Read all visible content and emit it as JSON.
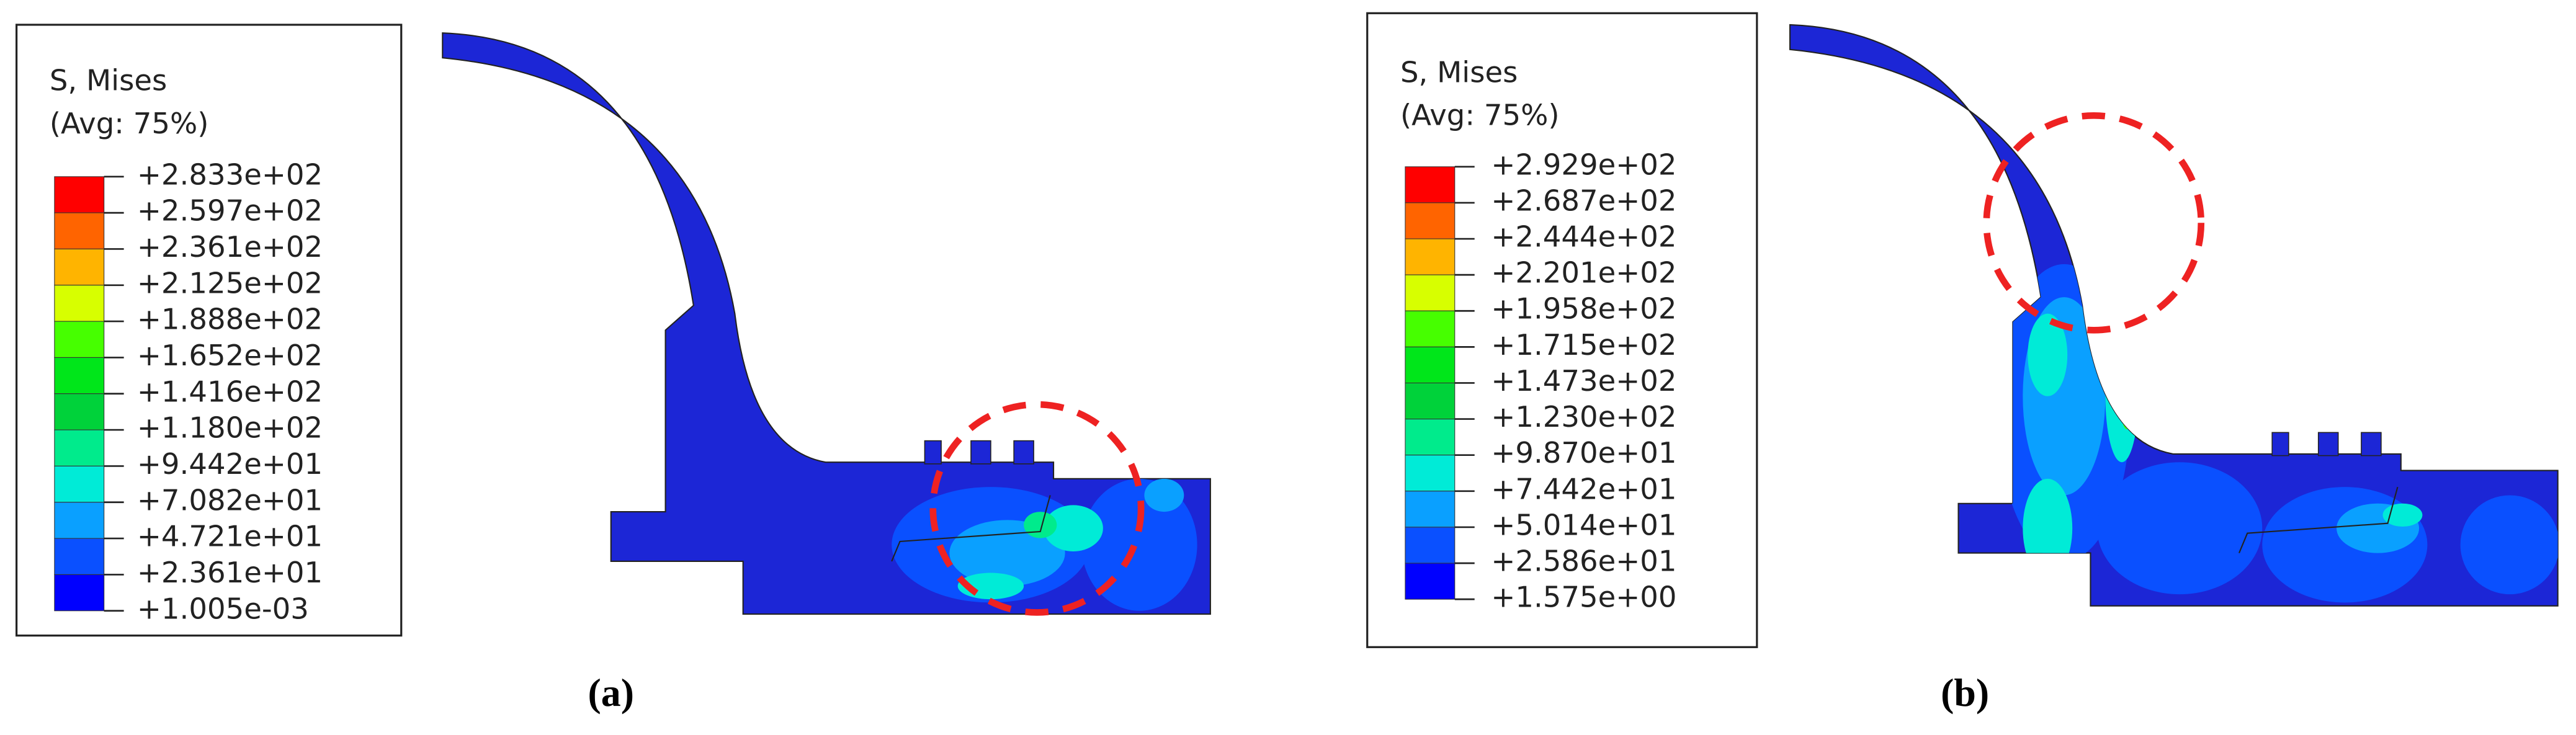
{
  "panels": [
    {
      "legend": {
        "title": "S, Mises",
        "subtitle": "(Avg: 75%)",
        "labels": [
          "+2.833e+02",
          "+2.597e+02",
          "+2.361e+02",
          "+2.125e+02",
          "+1.888e+02",
          "+1.652e+02",
          "+1.416e+02",
          "+1.180e+02",
          "+9.442e+01",
          "+7.082e+01",
          "+4.721e+01",
          "+2.361e+01",
          "+1.005e-03"
        ],
        "colors": [
          "#ff0000",
          "#ff6400",
          "#ffb400",
          "#d7ff00",
          "#46ff00",
          "#00e61a",
          "#00d23a",
          "#00eb8c",
          "#00ebd7",
          "#0aa0ff",
          "#0a50ff",
          "#0000ff"
        ]
      },
      "caption": "(a)"
    },
    {
      "legend": {
        "title": "S, Mises",
        "subtitle": "(Avg: 75%)",
        "labels": [
          "+2.929e+02",
          "+2.687e+02",
          "+2.444e+02",
          "+2.201e+02",
          "+1.958e+02",
          "+1.715e+02",
          "+1.473e+02",
          "+1.230e+02",
          "+9.870e+01",
          "+7.442e+01",
          "+5.014e+01",
          "+2.586e+01",
          "+1.575e+00"
        ],
        "colors": [
          "#ff0000",
          "#ff6400",
          "#ffb400",
          "#d7ff00",
          "#46ff00",
          "#00e61a",
          "#00d23a",
          "#00eb8c",
          "#00ebd7",
          "#0aa0ff",
          "#0a50ff",
          "#0000ff"
        ]
      },
      "caption": "(b)"
    }
  ]
}
